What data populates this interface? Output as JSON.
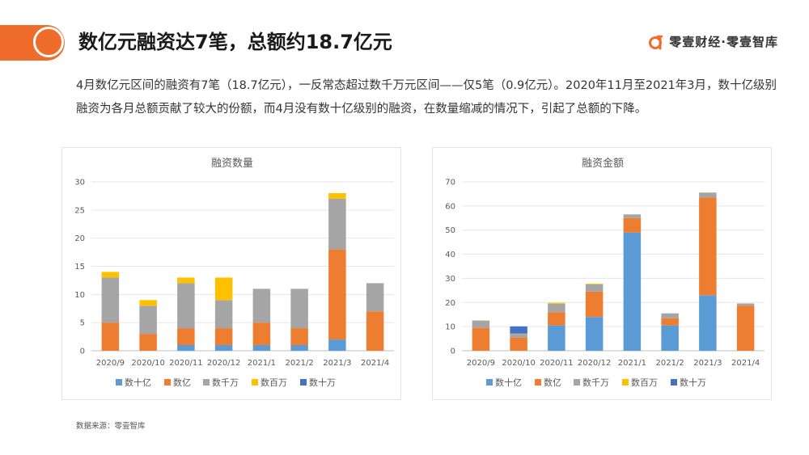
{
  "header": {
    "title": "数亿元融资达7笔，总额约18.7亿元",
    "brand": "零壹财经·零壹智库",
    "brand_logo_icon": "lingyi-logo-icon",
    "accent_color": "#ef6c2a"
  },
  "description": "4月数亿元区间的融资有7笔（18.7亿元），一反常态超过数千万元区间——仅5笔（0.9亿元）。2020年11月至2021年3月，数十亿级别融资为各月总额贡献了较大的份额，而4月没有数十亿级别的融资，在数量缩减的情况下，引起了总额的下降。",
  "source": "数据来源：零壹智库",
  "chart_data": [
    {
      "type": "bar",
      "stacked": true,
      "title": "融资数量",
      "categories": [
        "2020/9",
        "2020/10",
        "2020/11",
        "2020/12",
        "2021/1",
        "2021/2",
        "2021/3",
        "2021/4"
      ],
      "ylim": [
        0,
        30
      ],
      "yticks": [
        0,
        5,
        10,
        15,
        20,
        25,
        30
      ],
      "grid": true,
      "legend": "bottom",
      "series": [
        {
          "name": "数十亿",
          "color": "#5b9bd5",
          "values": [
            0,
            0,
            1,
            1,
            1,
            1,
            2,
            0
          ]
        },
        {
          "name": "数亿",
          "color": "#ed7d31",
          "values": [
            5,
            3,
            3,
            3,
            4,
            3,
            16,
            7
          ]
        },
        {
          "name": "数千万",
          "color": "#a5a5a5",
          "values": [
            8,
            5,
            8,
            5,
            6,
            7,
            9,
            5
          ]
        },
        {
          "name": "数百万",
          "color": "#ffc000",
          "values": [
            1,
            1,
            1,
            4,
            0,
            0,
            1,
            0
          ]
        },
        {
          "name": "数十万",
          "color": "#4472c4",
          "values": [
            0,
            0,
            0,
            0,
            0,
            0,
            0,
            0
          ]
        }
      ]
    },
    {
      "type": "bar",
      "stacked": true,
      "title": "融资金额",
      "categories": [
        "2020/9",
        "2020/10",
        "2020/11",
        "2020/12",
        "2021/1",
        "2021/2",
        "2021/3",
        "2021/4"
      ],
      "ylim": [
        0,
        70
      ],
      "yticks": [
        0,
        10,
        20,
        30,
        40,
        50,
        60,
        70
      ],
      "grid": true,
      "legend": "bottom",
      "series": [
        {
          "name": "数十亿",
          "color": "#5b9bd5",
          "values": [
            0,
            0,
            10.5,
            14,
            49,
            10.5,
            23,
            0
          ]
        },
        {
          "name": "数亿",
          "color": "#ed7d31",
          "values": [
            9.5,
            5.5,
            5.5,
            10.5,
            6,
            3,
            40.5,
            18.7
          ]
        },
        {
          "name": "数千万",
          "color": "#a5a5a5",
          "values": [
            3,
            1.5,
            3.5,
            3,
            1.5,
            2,
            2,
            0.9
          ]
        },
        {
          "name": "数百万",
          "color": "#ffc000",
          "values": [
            0.1,
            0.1,
            0.4,
            0.3,
            0,
            0,
            0.1,
            0
          ]
        },
        {
          "name": "数十万",
          "color": "#4472c4",
          "values": [
            0,
            3,
            0,
            0,
            0,
            0,
            0,
            0
          ]
        }
      ]
    }
  ]
}
